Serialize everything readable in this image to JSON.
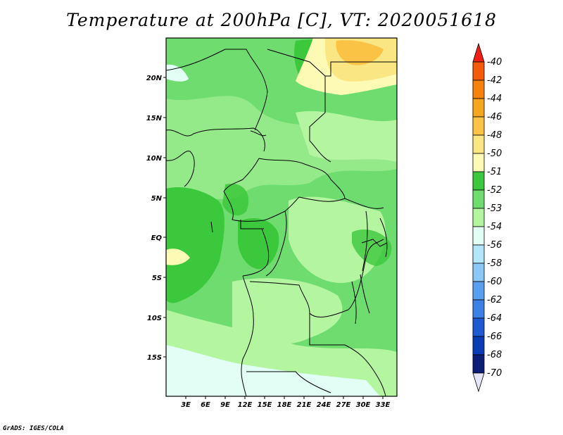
{
  "title": "Temperature at 200hPa [C], VT: 2020051618",
  "credit": "GrADS: IGES/COLA",
  "map": {
    "lon_ticks": [
      "3E",
      "6E",
      "9E",
      "12E",
      "15E",
      "18E",
      "21E",
      "24E",
      "27E",
      "30E",
      "33E"
    ],
    "lat_ticks": [
      "20N",
      "15N",
      "10N",
      "5N",
      "EQ",
      "5S",
      "10S",
      "15S"
    ]
  },
  "colorbar": {
    "labels": [
      "-40",
      "-42",
      "-44",
      "-46",
      "-48",
      "-50",
      "-51",
      "-52",
      "-53",
      "-54",
      "-56",
      "-58",
      "-60",
      "-62",
      "-64",
      "-66",
      "-68",
      "-70"
    ],
    "colors": [
      "#f01e14",
      "#f55a0a",
      "#f5820a",
      "#f5a51e",
      "#fac346",
      "#fae682",
      "#fcfab4",
      "#3cc83c",
      "#6edc6e",
      "#b4f5a0",
      "#e1fff5",
      "#b4e6fa",
      "#8cc8f5",
      "#5aa0f0",
      "#3c82e6",
      "#1e5ad2",
      "#0a3cb4",
      "#0a1e78",
      "#e6e6fa"
    ]
  }
}
